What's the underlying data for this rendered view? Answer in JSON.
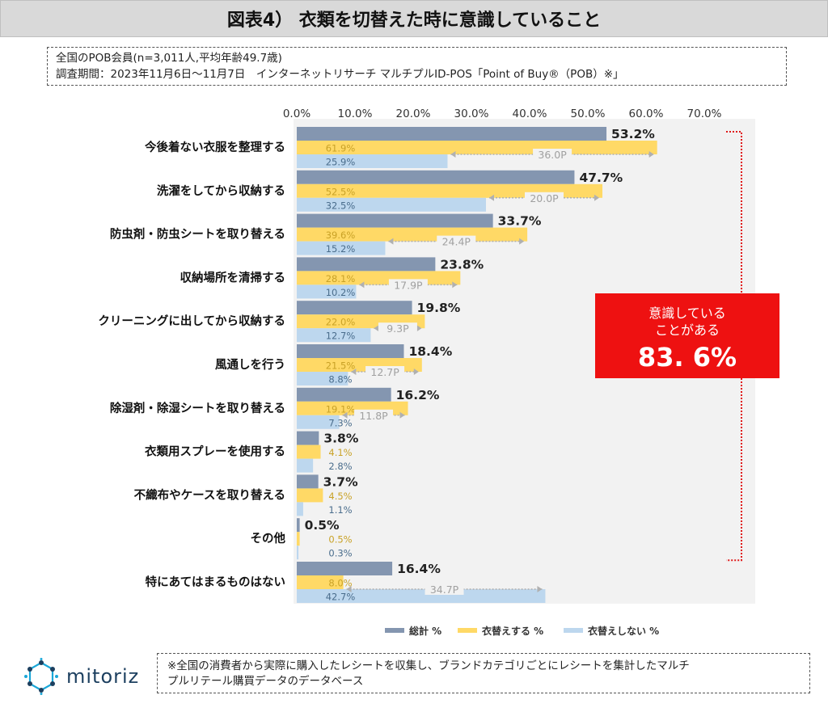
{
  "title": "図表4） 衣類を切替えた時に意識していること",
  "info": {
    "line1": "全国のPOB会員(n=3,011人,平均年齢49.7歳)",
    "line2": "調査期間：2023年11月6日～11月7日　インターネットリサーチ マルチプルID-POS「Point of Buy®（POB）※」"
  },
  "chart_data": {
    "type": "bar",
    "orientation": "horizontal",
    "x_ticks": [
      "0.0%",
      "10.0%",
      "20.0%",
      "30.0%",
      "40.0%",
      "50.0%",
      "60.0%",
      "70.0%"
    ],
    "xlim": [
      0,
      70
    ],
    "categories": [
      "今後着ない衣服を整理する",
      "洗濯をしてから収納する",
      "防虫剤・防虫シートを取り替える",
      "収納場所を清掃する",
      "クリーニングに出してから収納する",
      "風通しを行う",
      "除湿剤・除湿シートを取り替える",
      "衣類用スプレーを使用する",
      "不織布やケースを取り替える",
      "その他",
      "特にあてはまるものはない"
    ],
    "series": [
      {
        "name": "総計 %",
        "color": "#8496b0",
        "values": [
          53.2,
          47.7,
          33.7,
          23.8,
          19.8,
          18.4,
          16.2,
          3.8,
          3.7,
          0.5,
          16.4
        ],
        "labels": [
          "53.2%",
          "47.7%",
          "33.7%",
          "23.8%",
          "19.8%",
          "18.4%",
          "16.2%",
          "3.8%",
          "3.7%",
          "0.5%",
          "16.4%"
        ]
      },
      {
        "name": "衣替えする %",
        "color": "#ffd966",
        "values": [
          61.9,
          52.5,
          39.6,
          28.1,
          22.0,
          21.5,
          19.1,
          4.1,
          4.5,
          0.5,
          8.0
        ],
        "labels": [
          "61.9%",
          "52.5%",
          "39.6%",
          "28.1%",
          "22.0%",
          "21.5%",
          "19.1%",
          "4.1%",
          "4.5%",
          "0.5%",
          "8.0%"
        ]
      },
      {
        "name": "衣替えしない %",
        "color": "#bdd7ee",
        "values": [
          25.9,
          32.5,
          15.2,
          10.2,
          12.7,
          8.8,
          7.3,
          2.8,
          1.1,
          0.3,
          42.7
        ],
        "labels": [
          "25.9%",
          "32.5%",
          "15.2%",
          "10.2%",
          "12.7%",
          "8.8%",
          "7.3%",
          "2.8%",
          "1.1%",
          "0.3%",
          "42.7%"
        ]
      }
    ],
    "differences": [
      "36.0P",
      "20.0P",
      "24.4P",
      "17.9P",
      "9.3P",
      "12.7P",
      "11.8P",
      "",
      "",
      "",
      "34.7P"
    ],
    "callout": {
      "line1": "意識している",
      "line2": "ことがある",
      "value": "83. 6%",
      "color": "#ee1111"
    },
    "legend_position": "bottom"
  },
  "brand": {
    "name": "mitoriz"
  },
  "note": {
    "line1": "※全国の消費者から実際に購入したレシートを収集し、ブランドカテゴリごとにレシートを集計したマルチ",
    "line2": "プルリテール購買データのデータベース"
  }
}
